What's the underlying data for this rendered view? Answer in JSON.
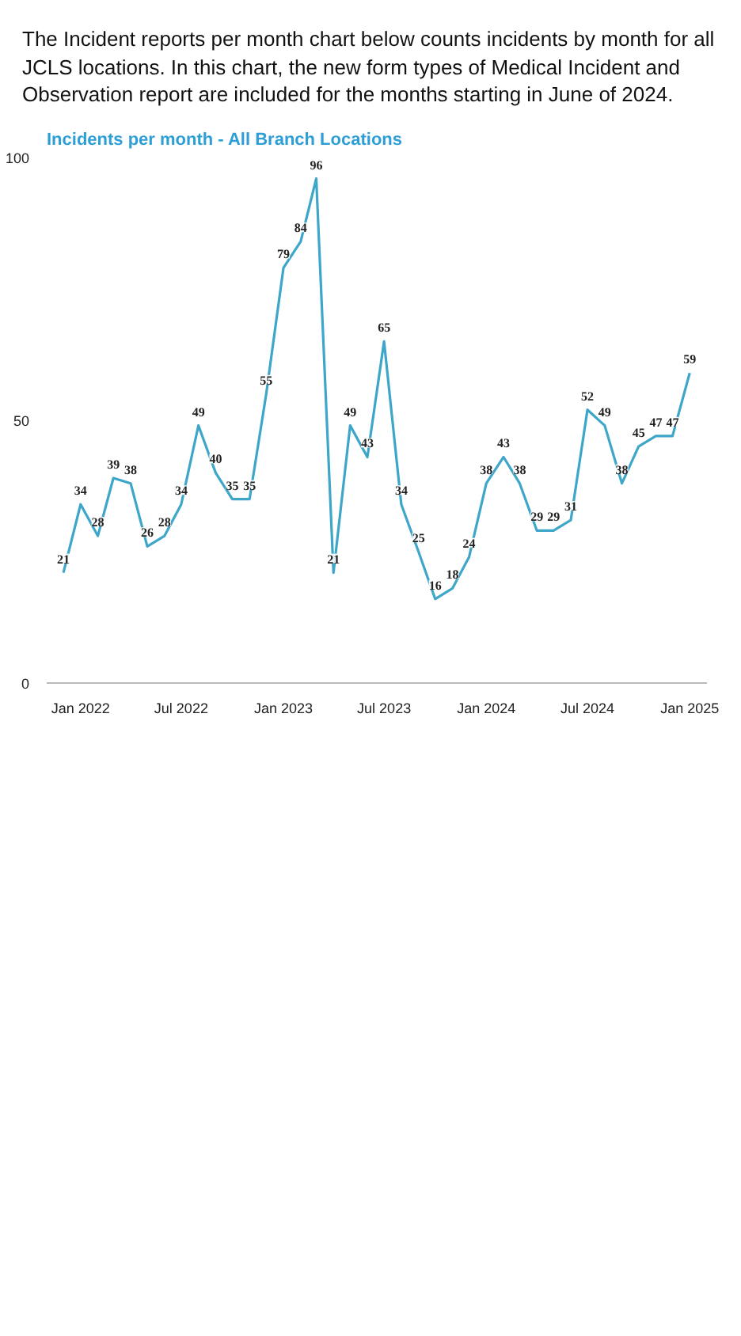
{
  "chart_data": {
    "type": "line",
    "title": "Incidents per month - All Branch Locations",
    "subtitle": "The Incident reports per month chart below counts incidents by month for all JCLS locations. In this chart, the new form types of Medical Incident and Observation report are included for the months starting in June of 2024.",
    "x": [
      "2021-12",
      "2022-01",
      "2022-02",
      "2022-03",
      "2022-04",
      "2022-05",
      "2022-06",
      "2022-07",
      "2022-08",
      "2022-09",
      "2022-10",
      "2022-11",
      "2022-12",
      "2023-01",
      "2023-02",
      "2023-03",
      "2023-04",
      "2023-05",
      "2023-06",
      "2023-07",
      "2023-08",
      "2023-09",
      "2023-10",
      "2023-11",
      "2023-12",
      "2024-01",
      "2024-02",
      "2024-03",
      "2024-04",
      "2024-05",
      "2024-06",
      "2024-07",
      "2024-08",
      "2024-09",
      "2024-10",
      "2024-11",
      "2024-12",
      "2025-01"
    ],
    "values": [
      21,
      34,
      28,
      39,
      38,
      26,
      28,
      34,
      49,
      40,
      35,
      35,
      55,
      79,
      84,
      96,
      21,
      49,
      43,
      65,
      34,
      25,
      16,
      18,
      24,
      38,
      43,
      38,
      29,
      29,
      31,
      52,
      49,
      38,
      45,
      47,
      47,
      59
    ],
    "color": "#3ea6c8",
    "xlim": [
      "2021-11",
      "2025-02"
    ],
    "xticks": [
      {
        "value": "2022-01",
        "label": "Jan 2022"
      },
      {
        "value": "2022-07",
        "label": "Jul 2022"
      },
      {
        "value": "2023-01",
        "label": "Jan 2023"
      },
      {
        "value": "2023-07",
        "label": "Jul 2023"
      },
      {
        "value": "2024-01",
        "label": "Jan 2024"
      },
      {
        "value": "2024-07",
        "label": "Jul 2024"
      },
      {
        "value": "2025-01",
        "label": "Jan 2025"
      }
    ],
    "ylim": [
      0,
      100
    ],
    "yticks": [
      0,
      50,
      100
    ],
    "data_labels": true,
    "grid": false
  }
}
